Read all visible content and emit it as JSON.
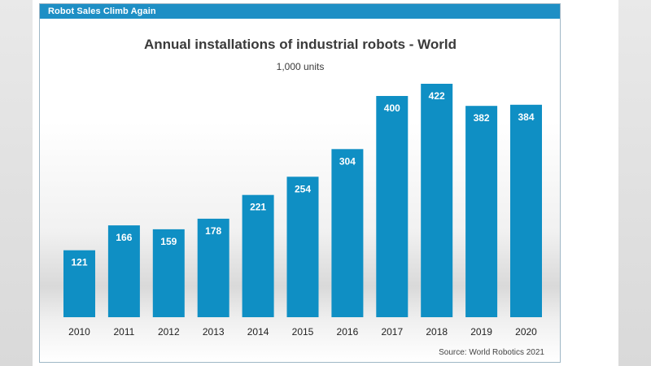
{
  "banner": {
    "title": "Robot Sales Climb Again"
  },
  "chart_data": {
    "type": "bar",
    "title": "Annual installations of industrial robots - World",
    "subtitle": "1,000 units",
    "categories": [
      "2010",
      "2011",
      "2012",
      "2013",
      "2014",
      "2015",
      "2016",
      "2017",
      "2018",
      "2019",
      "2020"
    ],
    "values": [
      121,
      166,
      159,
      178,
      221,
      254,
      304,
      400,
      422,
      382,
      384
    ],
    "source": "Source: World Robotics 2021",
    "xlabel": "",
    "ylabel": "",
    "ylim": [
      0,
      422
    ],
    "grid": false,
    "legend": "none",
    "bar_color": "#0f8fc4"
  }
}
